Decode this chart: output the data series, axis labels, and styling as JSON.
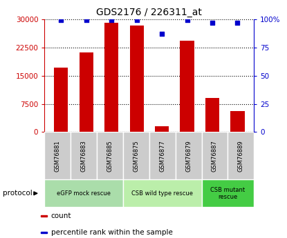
{
  "title": "GDS2176 / 226311_at",
  "samples": [
    "GSM76881",
    "GSM76883",
    "GSM76885",
    "GSM76875",
    "GSM76877",
    "GSM76879",
    "GSM76887",
    "GSM76889"
  ],
  "counts": [
    17200,
    21200,
    29000,
    28300,
    1500,
    24200,
    9000,
    5500
  ],
  "percentiles": [
    99,
    99,
    99,
    99,
    87,
    99,
    97,
    97
  ],
  "left_ylim": [
    0,
    30000
  ],
  "right_ylim": [
    0,
    100
  ],
  "left_yticks": [
    0,
    7500,
    15000,
    22500,
    30000
  ],
  "right_yticks": [
    0,
    25,
    50,
    75,
    100
  ],
  "right_yticklabels": [
    "0",
    "25",
    "50",
    "75",
    "100%"
  ],
  "bar_color": "#cc0000",
  "scatter_color": "#0000cc",
  "grid_color": "#000000",
  "title_color": "#000000",
  "left_tick_color": "#cc0000",
  "right_tick_color": "#0000cc",
  "protocol_groups": [
    {
      "label": "eGFP mock rescue",
      "start": 0,
      "end": 3,
      "color": "#aaddaa"
    },
    {
      "label": "CSB wild type rescue",
      "start": 3,
      "end": 6,
      "color": "#bbeeaa"
    },
    {
      "label": "CSB mutant\nrescue",
      "start": 6,
      "end": 8,
      "color": "#44cc44"
    }
  ],
  "legend_items": [
    {
      "color": "#cc0000",
      "label": "count"
    },
    {
      "color": "#0000cc",
      "label": "percentile rank within the sample"
    }
  ],
  "protocol_label": "protocol",
  "sample_box_color": "#cccccc",
  "fig_width": 4.15,
  "fig_height": 3.45
}
